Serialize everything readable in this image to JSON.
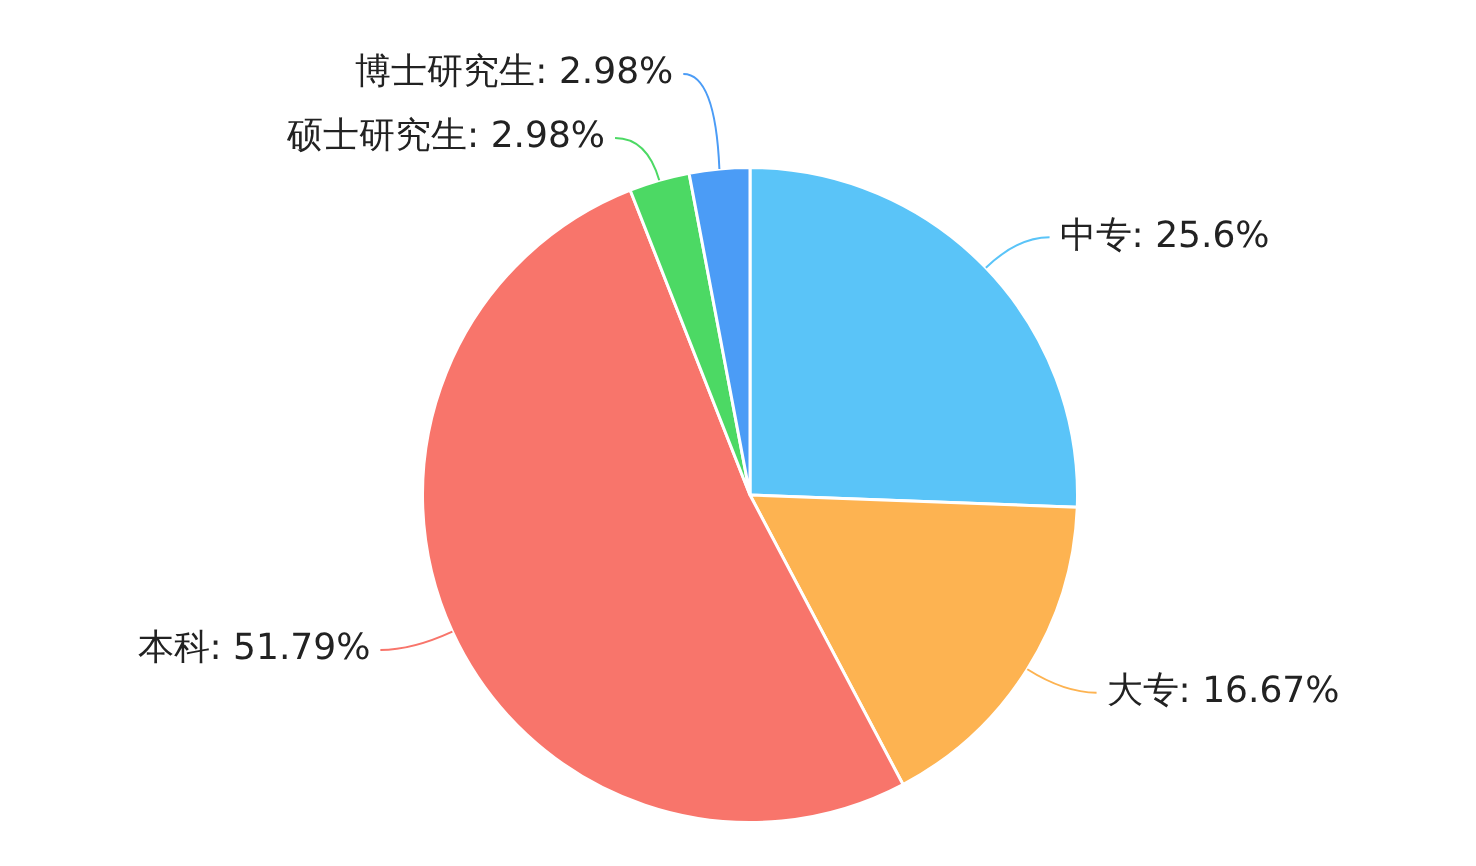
{
  "chart_data": {
    "type": "pie",
    "categories": [
      "中专",
      "大专",
      "本科",
      "硕士研究生",
      "博士研究生"
    ],
    "values": [
      25.6,
      16.67,
      51.79,
      2.98,
      2.98
    ],
    "value_labels": [
      "25.6%",
      "16.67%",
      "51.79%",
      "2.98%",
      "2.98%"
    ],
    "colors": [
      "#5ac4f8",
      "#fdb351",
      "#f8756b",
      "#4cd964",
      "#4b9cf6"
    ]
  }
}
